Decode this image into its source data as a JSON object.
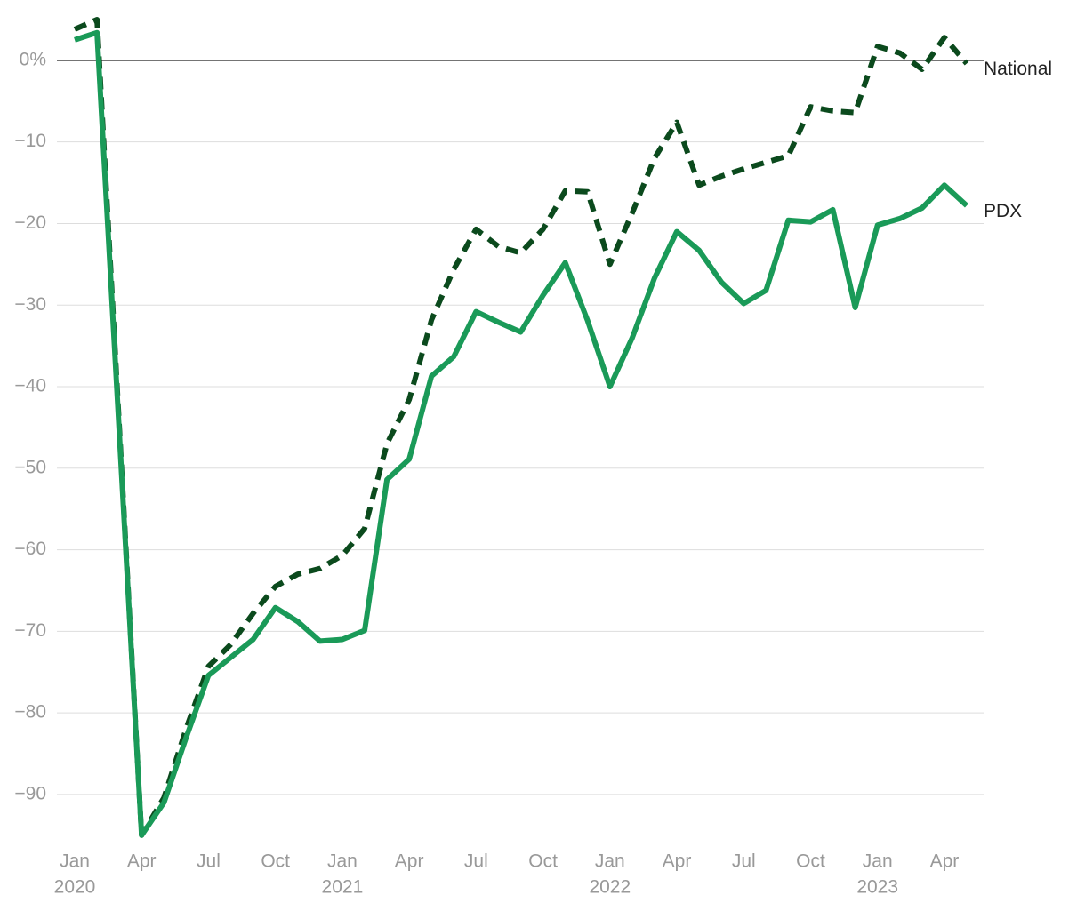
{
  "chart_data": {
    "type": "line",
    "categories": [
      "Jan",
      null,
      null,
      "Apr",
      null,
      null,
      "Jul",
      null,
      null,
      "Oct",
      null,
      null,
      "Jan",
      null,
      null,
      "Apr",
      null,
      null,
      "Jul",
      null,
      null,
      "Oct",
      null,
      null,
      "Jan",
      null,
      null,
      "Apr",
      null,
      null,
      "Jul",
      null,
      null,
      "Oct",
      null,
      null,
      "Jan",
      null,
      null,
      "Apr",
      null
    ],
    "year_labels": [
      "2020",
      null,
      null,
      null,
      null,
      null,
      null,
      null,
      null,
      null,
      null,
      null,
      "2021",
      null,
      null,
      null,
      null,
      null,
      null,
      null,
      null,
      null,
      null,
      null,
      "2022",
      null,
      null,
      null,
      null,
      null,
      null,
      null,
      null,
      null,
      null,
      null,
      "2023",
      null,
      null,
      null,
      null
    ],
    "series": [
      {
        "name": "National",
        "color": "#0b4a1d",
        "dashed": true,
        "values": [
          3.8,
          5,
          -45,
          -95,
          -90.4,
          -81.9,
          -74.3,
          -71.6,
          -67.8,
          -64.5,
          -63,
          -62.3,
          -60.7,
          -57.4,
          -47,
          -41.6,
          -31.8,
          -25.6,
          -20.7,
          -22.8,
          -23.6,
          -20.7,
          -16,
          -16.1,
          -25,
          -18.7,
          -12,
          -7.6,
          -15.3,
          -14.2,
          -13.3,
          -12.5,
          -11.7,
          -5.7,
          -6.2,
          -6.4,
          1.7,
          0.9,
          -1.1,
          2.8,
          -0.4
        ]
      },
      {
        "name": "PDX",
        "color": "#1a9a58",
        "dashed": false,
        "values": [
          2.5,
          3.4,
          -45.8,
          -95,
          -91,
          -83,
          -75.4,
          -73.2,
          -71,
          -67.1,
          -68.8,
          -71.2,
          -71,
          -69.9,
          -51.4,
          -48.9,
          -38.7,
          -36.3,
          -30.8,
          -32.1,
          -33.3,
          -28.8,
          -24.8,
          -31.9,
          -40,
          -34,
          -26.7,
          -21,
          -23.3,
          -27.2,
          -29.8,
          -28.2,
          -19.6,
          -19.8,
          -18.3,
          -30.3,
          -20.2,
          -19.4,
          -18.1,
          -15.3,
          -17.8
        ]
      }
    ],
    "ylim": [
      -96,
      5
    ],
    "yticks": [
      {
        "value": 0,
        "label": "0%"
      },
      {
        "value": -10,
        "label": "−10"
      },
      {
        "value": -20,
        "label": "−20"
      },
      {
        "value": -30,
        "label": "−30"
      },
      {
        "value": -40,
        "label": "−40"
      },
      {
        "value": -50,
        "label": "−50"
      },
      {
        "value": -60,
        "label": "−60"
      },
      {
        "value": -70,
        "label": "−70"
      },
      {
        "value": -80,
        "label": "−80"
      },
      {
        "value": -90,
        "label": "−90"
      }
    ],
    "grid": true
  }
}
